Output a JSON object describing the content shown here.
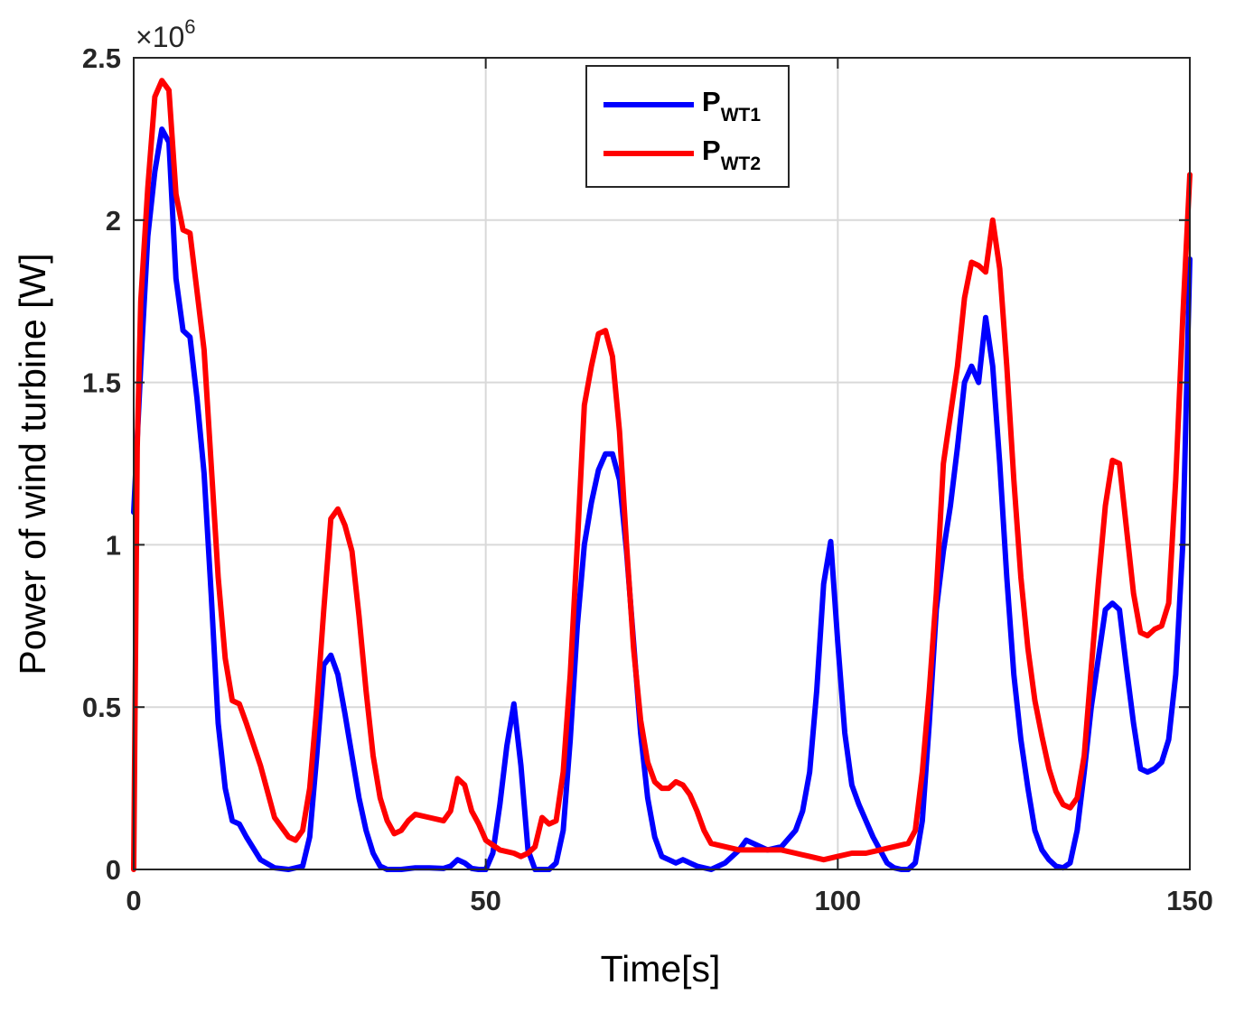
{
  "chart_data": {
    "type": "line",
    "title": "",
    "xlabel": "Time[s]",
    "ylabel": "Power of wind turbine [W]",
    "xlim": [
      0,
      150
    ],
    "ylim": [
      0,
      2.5
    ],
    "y_scale_label": {
      "base": "×10",
      "exponent": "6"
    },
    "grid": true,
    "legend_position": "top-center",
    "x_ticks": [
      0,
      50,
      100,
      150
    ],
    "x_tick_labels": [
      "0",
      "50",
      "100",
      "150"
    ],
    "y_ticks": [
      0,
      0.5,
      1,
      1.5,
      2,
      2.5
    ],
    "y_tick_labels": [
      "0",
      "0.5",
      "1",
      "1.5",
      "2",
      "2.5"
    ],
    "series": [
      {
        "name": "P_WT1",
        "legend_main": "P",
        "legend_sub": "WT1",
        "color": "#0000ff",
        "x": [
          0,
          1,
          2,
          3,
          4,
          5,
          6,
          7,
          8,
          9,
          10,
          11,
          12,
          13,
          14,
          15,
          16,
          18,
          20,
          22,
          24,
          25,
          26,
          27,
          28,
          29,
          30,
          31,
          32,
          33,
          34,
          35,
          36,
          37,
          38,
          40,
          42,
          44,
          45,
          46,
          47,
          48,
          49,
          50,
          51,
          52,
          53,
          54,
          55,
          56,
          57,
          58,
          59,
          60,
          61,
          62,
          63,
          64,
          65,
          66,
          67,
          68,
          69,
          70,
          71,
          72,
          73,
          74,
          75,
          76,
          77,
          78,
          79,
          80,
          82,
          84,
          86,
          87,
          88,
          90,
          92,
          94,
          95,
          96,
          97,
          98,
          99,
          100,
          101,
          102,
          103,
          104,
          105,
          106,
          107,
          108,
          109,
          110,
          111,
          112,
          113,
          114,
          115,
          116,
          117,
          118,
          119,
          120,
          121,
          122,
          123,
          124,
          125,
          126,
          127,
          128,
          129,
          130,
          131,
          132,
          133,
          134,
          135,
          136,
          137,
          138,
          139,
          140,
          141,
          142,
          143,
          144,
          145,
          146,
          147,
          148,
          149,
          150
        ],
        "y": [
          1.1,
          1.55,
          1.95,
          2.15,
          2.28,
          2.24,
          1.82,
          1.66,
          1.64,
          1.45,
          1.22,
          0.85,
          0.45,
          0.25,
          0.15,
          0.14,
          0.1,
          0.03,
          0.005,
          0.0,
          0.01,
          0.1,
          0.35,
          0.63,
          0.66,
          0.6,
          0.48,
          0.35,
          0.22,
          0.12,
          0.05,
          0.01,
          0.0,
          0.0,
          0.0,
          0.005,
          0.005,
          0.003,
          0.01,
          0.03,
          0.02,
          0.003,
          0.0,
          0.0,
          0.05,
          0.2,
          0.38,
          0.51,
          0.32,
          0.06,
          0.0,
          0.0,
          0.0,
          0.02,
          0.12,
          0.4,
          0.75,
          1.0,
          1.13,
          1.23,
          1.28,
          1.28,
          1.2,
          0.98,
          0.7,
          0.42,
          0.22,
          0.1,
          0.04,
          0.03,
          0.02,
          0.03,
          0.02,
          0.01,
          0.0,
          0.02,
          0.06,
          0.09,
          0.08,
          0.06,
          0.07,
          0.12,
          0.18,
          0.3,
          0.55,
          0.88,
          1.01,
          0.7,
          0.42,
          0.26,
          0.2,
          0.15,
          0.1,
          0.06,
          0.02,
          0.005,
          0.0,
          0.0,
          0.02,
          0.15,
          0.45,
          0.8,
          0.98,
          1.12,
          1.3,
          1.5,
          1.55,
          1.5,
          1.7,
          1.55,
          1.25,
          0.9,
          0.6,
          0.4,
          0.25,
          0.12,
          0.06,
          0.03,
          0.01,
          0.005,
          0.02,
          0.12,
          0.3,
          0.5,
          0.65,
          0.8,
          0.82,
          0.8,
          0.62,
          0.45,
          0.31,
          0.3,
          0.31,
          0.33,
          0.4,
          0.6,
          1.0,
          1.88
        ]
      },
      {
        "name": "P_WT2",
        "legend_main": "P",
        "legend_sub": "WT2",
        "color": "#ff0000",
        "x": [
          0,
          0.5,
          1,
          2,
          3,
          4,
          5,
          6,
          7,
          8,
          9,
          10,
          11,
          12,
          13,
          14,
          15,
          16,
          18,
          20,
          22,
          23,
          24,
          25,
          26,
          27,
          28,
          29,
          30,
          31,
          32,
          33,
          34,
          35,
          36,
          37,
          38,
          39,
          40,
          42,
          44,
          45,
          46,
          47,
          48,
          49,
          50,
          52,
          54,
          55,
          56,
          57,
          58,
          59,
          60,
          61,
          62,
          63,
          64,
          65,
          66,
          67,
          68,
          69,
          70,
          71,
          72,
          73,
          74,
          75,
          76,
          77,
          78,
          79,
          80,
          81,
          82,
          84,
          86,
          88,
          90,
          92,
          94,
          96,
          98,
          100,
          102,
          104,
          106,
          108,
          110,
          111,
          112,
          113,
          114,
          115,
          116,
          117,
          118,
          119,
          120,
          121,
          122,
          123,
          124,
          125,
          126,
          127,
          128,
          129,
          130,
          131,
          132,
          133,
          134,
          135,
          136,
          137,
          138,
          139,
          140,
          141,
          142,
          143,
          144,
          145,
          146,
          147,
          148,
          149,
          150
        ],
        "y": [
          0.0,
          1.3,
          1.75,
          2.1,
          2.38,
          2.43,
          2.4,
          2.08,
          1.97,
          1.96,
          1.78,
          1.6,
          1.25,
          0.9,
          0.65,
          0.52,
          0.51,
          0.45,
          0.32,
          0.16,
          0.1,
          0.09,
          0.12,
          0.25,
          0.5,
          0.8,
          1.08,
          1.11,
          1.06,
          0.98,
          0.78,
          0.55,
          0.35,
          0.22,
          0.15,
          0.11,
          0.12,
          0.15,
          0.17,
          0.16,
          0.15,
          0.18,
          0.28,
          0.26,
          0.18,
          0.14,
          0.09,
          0.06,
          0.05,
          0.04,
          0.05,
          0.07,
          0.16,
          0.14,
          0.15,
          0.3,
          0.6,
          1.0,
          1.43,
          1.55,
          1.65,
          1.66,
          1.58,
          1.35,
          1.0,
          0.68,
          0.46,
          0.33,
          0.27,
          0.25,
          0.25,
          0.27,
          0.26,
          0.23,
          0.18,
          0.12,
          0.08,
          0.07,
          0.06,
          0.06,
          0.06,
          0.06,
          0.05,
          0.04,
          0.03,
          0.04,
          0.05,
          0.05,
          0.06,
          0.07,
          0.08,
          0.12,
          0.3,
          0.55,
          0.85,
          1.25,
          1.4,
          1.55,
          1.76,
          1.87,
          1.86,
          1.84,
          2.0,
          1.85,
          1.55,
          1.2,
          0.9,
          0.68,
          0.52,
          0.41,
          0.31,
          0.24,
          0.2,
          0.19,
          0.22,
          0.35,
          0.62,
          0.88,
          1.12,
          1.26,
          1.25,
          1.05,
          0.85,
          0.73,
          0.72,
          0.74,
          0.75,
          0.82,
          1.2,
          1.7,
          2.14
        ]
      }
    ]
  }
}
